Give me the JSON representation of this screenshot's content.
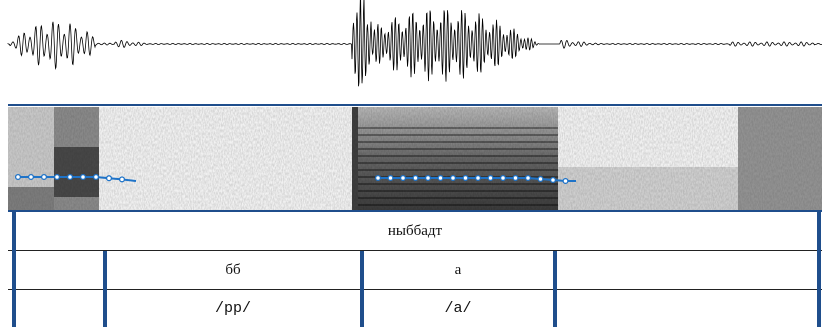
{
  "colors": {
    "waveform": "#000000",
    "pitch_track": "#1e73c8",
    "boundary": "#1f4e8c"
  },
  "tiers": {
    "word": {
      "label": "ныббадт"
    },
    "segments": [
      {
        "label": ""
      },
      {
        "label": "бб"
      },
      {
        "label": "а"
      },
      {
        "label": ""
      }
    ],
    "phonemes": [
      {
        "label": ""
      },
      {
        "label": "/pp/"
      },
      {
        "label": "/a/"
      },
      {
        "label": ""
      }
    ]
  }
}
